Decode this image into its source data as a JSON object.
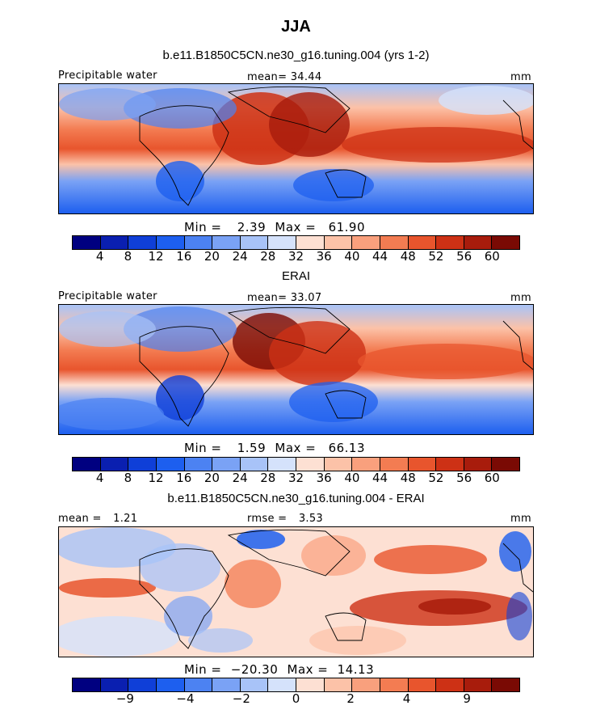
{
  "page": {
    "title": "JJA",
    "subtitle": "b.e11.B1850C5CN.ne30_g16.tuning.004 (yrs 1-2)"
  },
  "colors": {
    "scale": [
      "#000080",
      "#0a1fb0",
      "#0f3fd8",
      "#1d5fef",
      "#4c82f2",
      "#7aa2f5",
      "#a8c3f8",
      "#d5e2fb",
      "#fde0d3",
      "#fcc2a8",
      "#f9a07d",
      "#f37c52",
      "#e8552d",
      "#cd3115",
      "#a81c0c",
      "#7a0a04"
    ],
    "diffscale": [
      "#000080",
      "#0a1fb0",
      "#0f3fd8",
      "#1d5fef",
      "#4c82f2",
      "#7aa2f5",
      "#a8c3f8",
      "#d5e2fb",
      "#fde0d3",
      "#fcc2a8",
      "#f9a07d",
      "#f37c52",
      "#e8552d",
      "#cd3115",
      "#a81c0c",
      "#7a0a04"
    ]
  },
  "panels": [
    {
      "left_label": "Precipitable water",
      "mean_label": "mean=",
      "mean_value": "34.44",
      "units": "mm",
      "min_label": "Min =",
      "min_value": "2.39",
      "max_label": "Max =",
      "max_value": "61.90",
      "ticks": [
        "4",
        "8",
        "12",
        "16",
        "20",
        "24",
        "28",
        "32",
        "36",
        "40",
        "44",
        "48",
        "52",
        "56",
        "60"
      ]
    },
    {
      "title": "ERAI",
      "left_label": "Precipitable water",
      "mean_label": "mean=",
      "mean_value": "33.07",
      "units": "mm",
      "min_label": "Min =",
      "min_value": "1.59",
      "max_label": "Max =",
      "max_value": "66.13",
      "ticks": [
        "4",
        "8",
        "12",
        "16",
        "20",
        "24",
        "28",
        "32",
        "36",
        "40",
        "44",
        "48",
        "52",
        "56",
        "60"
      ]
    },
    {
      "title": "b.e11.B1850C5CN.ne30_g16.tuning.004 - ERAI",
      "mean_label": "mean =",
      "mean_value": "1.21",
      "rmse_label": "rmse =",
      "rmse_value": "3.53",
      "units": "mm",
      "min_label": "Min =",
      "min_value": "−20.30",
      "max_label": "Max =",
      "max_value": "14.13",
      "ticks": [
        "−9",
        "−4",
        "−2",
        "0",
        "2",
        "4",
        "9"
      ]
    }
  ],
  "chart_data": [
    {
      "type": "heatmap",
      "title": "b.e11.B1850C5CN.ne30_g16.tuning.004 (yrs 1-2)",
      "variable": "Precipitable water",
      "units": "mm",
      "mean": 34.44,
      "min": 2.39,
      "max": 61.9,
      "levels": [
        4,
        8,
        12,
        16,
        20,
        24,
        28,
        32,
        36,
        40,
        44,
        48,
        52,
        56,
        60
      ]
    },
    {
      "type": "heatmap",
      "title": "ERAI",
      "variable": "Precipitable water",
      "units": "mm",
      "mean": 33.07,
      "min": 1.59,
      "max": 66.13,
      "levels": [
        4,
        8,
        12,
        16,
        20,
        24,
        28,
        32,
        36,
        40,
        44,
        48,
        52,
        56,
        60
      ]
    },
    {
      "type": "heatmap",
      "title": "b.e11.B1850C5CN.ne30_g16.tuning.004 - ERAI",
      "units": "mm",
      "mean": 1.21,
      "rmse": 3.53,
      "min": -20.3,
      "max": 14.13,
      "levels": [
        -9,
        -4,
        -2,
        0,
        2,
        4,
        9
      ]
    }
  ]
}
